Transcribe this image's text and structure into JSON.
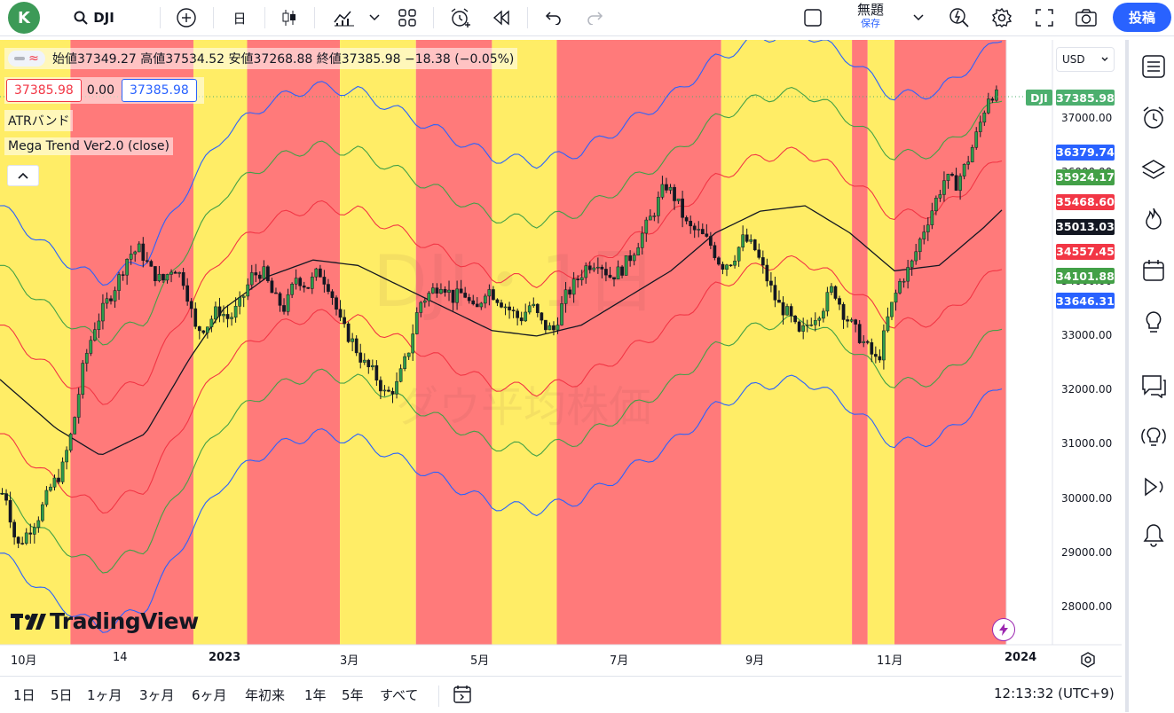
{
  "toolbar": {
    "avatar_letter": "K",
    "symbol": "DJI",
    "interval": "日",
    "layout_name": "無題",
    "save_label": "保存",
    "post_label": "投稿"
  },
  "legend": {
    "toggle_glyph": "≈",
    "ohlc_line": "始値37349.27 高値37534.52 安値37268.88 終値37385.98 −18.38 (−0.05%)",
    "bid": "37385.98",
    "spread": "0.00",
    "ask": "37385.98",
    "indicator1": "ATRバンド",
    "indicator2": "Mega Trend Ver2.0 (close)"
  },
  "watermark": {
    "ticker_hint": "DJI・1日",
    "name_hint": "ダウ平均株価"
  },
  "logo_text": "TradingView",
  "currency": "USD",
  "price_axis": {
    "ticks": [
      "37000.00",
      "36000.00",
      "35000.00",
      "34000.00",
      "33000.00",
      "32000.00",
      "31000.00",
      "30000.00",
      "29000.00",
      "28000.00"
    ],
    "tick_values": [
      37000,
      36000,
      35000,
      34000,
      33000,
      32000,
      31000,
      30000,
      29000,
      28000
    ],
    "labels": [
      {
        "text": "DJI",
        "value": "37385.98",
        "color": "#4caf6e"
      },
      {
        "text": "",
        "value": "36379.74",
        "color": "#2962ff"
      },
      {
        "text": "",
        "value": "35924.17",
        "color": "#43a047"
      },
      {
        "text": "",
        "value": "35468.60",
        "color": "#f23645"
      },
      {
        "text": "",
        "value": "35013.03",
        "color": "#131722"
      },
      {
        "text": "",
        "value": "34557.45",
        "color": "#f23645"
      },
      {
        "text": "",
        "value": "34101.88",
        "color": "#43a047"
      },
      {
        "text": "",
        "value": "33646.31",
        "color": "#2962ff"
      }
    ]
  },
  "time_axis": [
    "10月",
    "14",
    "2023",
    "3月",
    "5月",
    "7月",
    "9月",
    "11月",
    "2024"
  ],
  "ranges": [
    "1日",
    "5日",
    "1ヶ月",
    "3ヶ月",
    "6ヶ月",
    "年初来",
    "1年",
    "5年",
    "すべて"
  ],
  "clock": "12:13:32 (UTC+9)",
  "colors": {
    "bull_zone": "#ffed66",
    "bear_zone": "#ff7a7a",
    "mid": "#131722",
    "inner": "#f23645",
    "middle_band": "#43a047",
    "outer": "#2962ff"
  },
  "chart_data": {
    "type": "candlestick",
    "symbol": "DJI",
    "interval": "1D",
    "ylim": [
      27500,
      37800
    ],
    "zones": [
      {
        "from": 0,
        "to": 0.063,
        "state": "bull"
      },
      {
        "from": 0.063,
        "to": 0.173,
        "state": "bear"
      },
      {
        "from": 0.173,
        "to": 0.221,
        "state": "bull"
      },
      {
        "from": 0.221,
        "to": 0.304,
        "state": "bear"
      },
      {
        "from": 0.304,
        "to": 0.372,
        "state": "bull"
      },
      {
        "from": 0.372,
        "to": 0.44,
        "state": "bear"
      },
      {
        "from": 0.44,
        "to": 0.498,
        "state": "bull"
      },
      {
        "from": 0.498,
        "to": 0.645,
        "state": "bear"
      },
      {
        "from": 0.645,
        "to": 0.762,
        "state": "bull"
      },
      {
        "from": 0.762,
        "to": 0.776,
        "state": "bear"
      },
      {
        "from": 0.776,
        "to": 0.8,
        "state": "bull"
      },
      {
        "from": 0.8,
        "to": 0.9,
        "state": "bear"
      }
    ],
    "trend_line": [
      [
        0,
        32200
      ],
      [
        0.05,
        31300
      ],
      [
        0.09,
        30800
      ],
      [
        0.13,
        31200
      ],
      [
        0.17,
        32600
      ],
      [
        0.2,
        33500
      ],
      [
        0.24,
        34100
      ],
      [
        0.28,
        34400
      ],
      [
        0.32,
        34300
      ],
      [
        0.36,
        33900
      ],
      [
        0.4,
        33500
      ],
      [
        0.44,
        33100
      ],
      [
        0.48,
        33000
      ],
      [
        0.52,
        33200
      ],
      [
        0.56,
        33700
      ],
      [
        0.6,
        34200
      ],
      [
        0.64,
        34900
      ],
      [
        0.68,
        35300
      ],
      [
        0.72,
        35400
      ],
      [
        0.76,
        34900
      ],
      [
        0.8,
        34200
      ],
      [
        0.84,
        34300
      ],
      [
        0.88,
        35000
      ],
      [
        0.9,
        35400
      ]
    ],
    "band_offsets": {
      "inner": 1000,
      "middle": 2100,
      "outer": 3200
    },
    "closes": [
      [
        0.005,
        30100
      ],
      [
        0.015,
        29100
      ],
      [
        0.025,
        29400
      ],
      [
        0.035,
        29700
      ],
      [
        0.045,
        30200
      ],
      [
        0.055,
        30500
      ],
      [
        0.065,
        31300
      ],
      [
        0.075,
        32500
      ],
      [
        0.085,
        33200
      ],
      [
        0.095,
        33600
      ],
      [
        0.105,
        34000
      ],
      [
        0.115,
        34500
      ],
      [
        0.125,
        34600
      ],
      [
        0.135,
        34200
      ],
      [
        0.145,
        34000
      ],
      [
        0.155,
        34300
      ],
      [
        0.165,
        34000
      ],
      [
        0.175,
        33100
      ],
      [
        0.185,
        33200
      ],
      [
        0.195,
        33500
      ],
      [
        0.205,
        33300
      ],
      [
        0.215,
        33600
      ],
      [
        0.225,
        34100
      ],
      [
        0.235,
        34200
      ],
      [
        0.245,
        33700
      ],
      [
        0.255,
        33500
      ],
      [
        0.265,
        34100
      ],
      [
        0.275,
        33900
      ],
      [
        0.285,
        34200
      ],
      [
        0.295,
        33900
      ],
      [
        0.305,
        33200
      ],
      [
        0.315,
        32900
      ],
      [
        0.325,
        32500
      ],
      [
        0.335,
        32300
      ],
      [
        0.345,
        31900
      ],
      [
        0.355,
        32100
      ],
      [
        0.365,
        32700
      ],
      [
        0.375,
        33600
      ],
      [
        0.385,
        33800
      ],
      [
        0.395,
        34000
      ],
      [
        0.405,
        33700
      ],
      [
        0.415,
        33800
      ],
      [
        0.425,
        33400
      ],
      [
        0.435,
        33900
      ],
      [
        0.445,
        33700
      ],
      [
        0.455,
        33500
      ],
      [
        0.465,
        33300
      ],
      [
        0.475,
        33600
      ],
      [
        0.485,
        33200
      ],
      [
        0.495,
        33100
      ],
      [
        0.505,
        33700
      ],
      [
        0.515,
        34000
      ],
      [
        0.525,
        34300
      ],
      [
        0.535,
        34400
      ],
      [
        0.545,
        34100
      ],
      [
        0.555,
        34200
      ],
      [
        0.565,
        34500
      ],
      [
        0.575,
        34900
      ],
      [
        0.585,
        35300
      ],
      [
        0.595,
        35800
      ],
      [
        0.605,
        35500
      ],
      [
        0.615,
        35000
      ],
      [
        0.625,
        34900
      ],
      [
        0.635,
        34700
      ],
      [
        0.645,
        34300
      ],
      [
        0.655,
        34400
      ],
      [
        0.665,
        34800
      ],
      [
        0.675,
        34600
      ],
      [
        0.685,
        34100
      ],
      [
        0.695,
        33600
      ],
      [
        0.705,
        33400
      ],
      [
        0.715,
        33000
      ],
      [
        0.725,
        33300
      ],
      [
        0.735,
        33500
      ],
      [
        0.745,
        33900
      ],
      [
        0.755,
        33400
      ],
      [
        0.765,
        33100
      ],
      [
        0.775,
        32800
      ],
      [
        0.785,
        32500
      ],
      [
        0.795,
        33400
      ],
      [
        0.805,
        34000
      ],
      [
        0.815,
        34300
      ],
      [
        0.825,
        34900
      ],
      [
        0.835,
        35400
      ],
      [
        0.845,
        35900
      ],
      [
        0.855,
        35800
      ],
      [
        0.865,
        36200
      ],
      [
        0.875,
        36800
      ],
      [
        0.885,
        37500
      ],
      [
        0.893,
        37390
      ]
    ]
  }
}
